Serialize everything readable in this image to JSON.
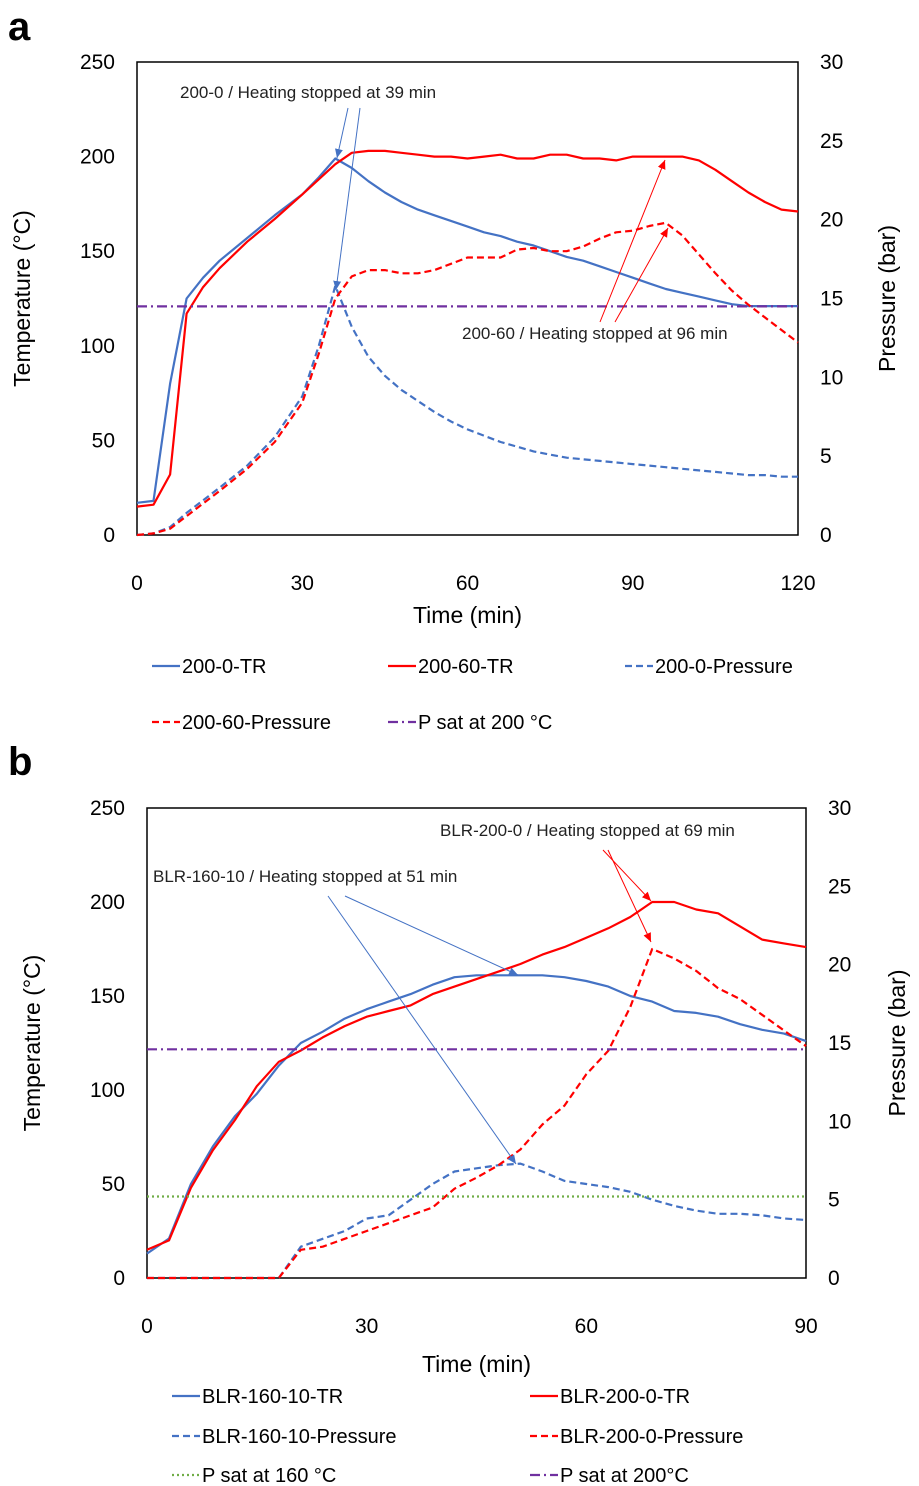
{
  "chart_data": [
    {
      "panel": "a",
      "type": "line",
      "xlabel": "Time (min)",
      "ylabel": "Temperature (°C)",
      "y2label": "Pressure (bar)",
      "xlim": [
        0,
        120
      ],
      "ylim": [
        0,
        250
      ],
      "y2lim": [
        0,
        30
      ],
      "xticks": [
        0,
        30,
        60,
        90,
        120
      ],
      "yticks": [
        0,
        50,
        100,
        150,
        200,
        250
      ],
      "y2ticks": [
        0,
        5,
        10,
        15,
        20,
        25,
        30
      ],
      "grid": false,
      "legend": "bottom",
      "colors": {
        "blue": "#4472c4",
        "red": "#ff0000",
        "purple": "#7030a0"
      },
      "series": [
        {
          "name": "200-0-TR",
          "axis": "left",
          "color": "#4472c4",
          "dash": "solid",
          "x": [
            0,
            3,
            6,
            9,
            12,
            15,
            20,
            25,
            30,
            33,
            36,
            39,
            42,
            45,
            48,
            51,
            54,
            57,
            60,
            63,
            66,
            69,
            72,
            75,
            78,
            81,
            84,
            87,
            90,
            93,
            96,
            99,
            102,
            105,
            108,
            111,
            114,
            117,
            120
          ],
          "y": [
            17,
            18,
            80,
            125,
            136,
            145,
            157,
            169,
            180,
            189,
            199,
            194,
            187,
            181,
            176,
            172,
            169,
            166,
            163,
            160,
            158,
            155,
            153,
            150,
            147,
            145,
            142,
            139,
            136,
            133,
            130,
            128,
            126,
            124,
            122,
            121,
            121,
            121,
            121
          ]
        },
        {
          "name": "200-60-TR",
          "axis": "left",
          "color": "#ff0000",
          "dash": "solid",
          "x": [
            0,
            3,
            6,
            9,
            12,
            15,
            20,
            25,
            30,
            33,
            36,
            39,
            42,
            45,
            48,
            51,
            54,
            57,
            60,
            63,
            66,
            69,
            72,
            75,
            78,
            81,
            84,
            87,
            90,
            93,
            96,
            99,
            102,
            105,
            108,
            111,
            114,
            117,
            120
          ],
          "y": [
            15,
            16,
            32,
            117,
            131,
            141,
            155,
            167,
            180,
            188,
            196,
            202,
            203,
            203,
            202,
            201,
            200,
            200,
            199,
            200,
            201,
            199,
            199,
            201,
            201,
            199,
            199,
            198,
            200,
            200,
            200,
            200,
            198,
            193,
            187,
            181,
            176,
            172,
            171
          ]
        },
        {
          "name": "200-0-Pressure",
          "axis": "right",
          "color": "#4472c4",
          "dash": "dashed",
          "x": [
            0,
            3,
            6,
            9,
            12,
            15,
            20,
            25,
            30,
            33,
            36,
            39,
            42,
            45,
            48,
            51,
            54,
            57,
            60,
            63,
            66,
            69,
            72,
            75,
            78,
            81,
            84,
            87,
            90,
            93,
            96,
            99,
            102,
            105,
            108,
            111,
            114,
            117,
            120
          ],
          "y": [
            0,
            0.1,
            0.5,
            1.4,
            2.2,
            3.0,
            4.4,
            6.2,
            8.8,
            12.0,
            15.8,
            13.2,
            11.3,
            10.1,
            9.2,
            8.5,
            7.8,
            7.2,
            6.7,
            6.3,
            5.9,
            5.6,
            5.3,
            5.1,
            4.9,
            4.8,
            4.7,
            4.6,
            4.5,
            4.4,
            4.3,
            4.2,
            4.1,
            4.0,
            3.9,
            3.8,
            3.8,
            3.7,
            3.7
          ]
        },
        {
          "name": "200-60-Pressure",
          "axis": "right",
          "color": "#ff0000",
          "dash": "dashed",
          "x": [
            0,
            3,
            6,
            9,
            12,
            15,
            20,
            25,
            30,
            33,
            36,
            39,
            42,
            45,
            48,
            51,
            54,
            57,
            60,
            63,
            66,
            69,
            72,
            75,
            78,
            81,
            84,
            87,
            90,
            93,
            96,
            99,
            102,
            105,
            108,
            111,
            114,
            117,
            120
          ],
          "y": [
            0,
            0.1,
            0.4,
            1.2,
            2.0,
            2.8,
            4.2,
            5.9,
            8.4,
            11.5,
            15.0,
            16.4,
            16.8,
            16.8,
            16.6,
            16.6,
            16.8,
            17.2,
            17.6,
            17.6,
            17.6,
            18.1,
            18.2,
            18.0,
            18.0,
            18.3,
            18.8,
            19.2,
            19.3,
            19.6,
            19.8,
            19.0,
            17.8,
            16.6,
            15.5,
            14.6,
            13.8,
            13.0,
            12.2
          ]
        },
        {
          "name": "P sat at 200 °C",
          "axis": "right",
          "color": "#7030a0",
          "dash": "dashdot",
          "x": [
            0,
            120
          ],
          "y": [
            14.5,
            14.5
          ]
        }
      ],
      "annotations": [
        {
          "text": "200-0 / Heating stopped at 39 min",
          "color": "#4472c4"
        },
        {
          "text": "200-60 / Heating stopped at 96 min",
          "color": "#ff0000"
        }
      ]
    },
    {
      "panel": "b",
      "type": "line",
      "xlabel": "Time (min)",
      "ylabel": "Temperature (°C)",
      "y2label": "Pressure (bar)",
      "xlim": [
        0,
        90
      ],
      "ylim": [
        0,
        250
      ],
      "y2lim": [
        0,
        30
      ],
      "xticks": [
        0,
        30,
        60,
        90
      ],
      "yticks": [
        0,
        50,
        100,
        150,
        200,
        250
      ],
      "y2ticks": [
        0,
        5,
        10,
        15,
        20,
        25,
        30
      ],
      "grid": false,
      "legend": "bottom",
      "colors": {
        "blue": "#4472c4",
        "red": "#ff0000",
        "purple": "#7030a0",
        "green": "#70ad47"
      },
      "series": [
        {
          "name": "BLR-160-10-TR",
          "axis": "left",
          "color": "#4472c4",
          "dash": "solid",
          "x": [
            0,
            3,
            6,
            9,
            12,
            15,
            18,
            21,
            24,
            27,
            30,
            33,
            36,
            39,
            42,
            45,
            48,
            51,
            54,
            57,
            60,
            63,
            66,
            69,
            72,
            75,
            78,
            81,
            84,
            87,
            90
          ],
          "y": [
            13,
            21,
            50,
            70,
            86,
            98,
            113,
            125,
            131,
            138,
            143,
            147,
            151,
            156,
            160,
            161,
            161,
            161,
            161,
            160,
            158,
            155,
            150,
            147,
            142,
            141,
            139,
            135,
            132,
            130,
            126
          ]
        },
        {
          "name": "BLR-200-0-TR",
          "axis": "left",
          "color": "#ff0000",
          "dash": "solid",
          "x": [
            0,
            3,
            6,
            9,
            12,
            15,
            18,
            21,
            24,
            27,
            30,
            33,
            36,
            39,
            42,
            45,
            48,
            51,
            54,
            57,
            60,
            63,
            66,
            69,
            72,
            75,
            78,
            81,
            84,
            87,
            90
          ],
          "y": [
            15,
            20,
            48,
            68,
            84,
            102,
            115,
            121,
            128,
            134,
            139,
            142,
            145,
            151,
            155,
            159,
            163,
            167,
            172,
            176,
            181,
            186,
            192,
            200,
            200,
            196,
            194,
            187,
            180,
            178,
            176
          ]
        },
        {
          "name": "BLR-160-10-Pressure",
          "axis": "right",
          "color": "#4472c4",
          "dash": "dashed",
          "x": [
            0,
            18,
            21,
            24,
            27,
            30,
            33,
            36,
            39,
            42,
            45,
            48,
            51,
            54,
            57,
            60,
            63,
            66,
            69,
            72,
            75,
            78,
            81,
            84,
            87,
            90
          ],
          "y": [
            0,
            0,
            2.0,
            2.5,
            3.0,
            3.8,
            4.0,
            5.0,
            6.0,
            6.8,
            7.0,
            7.2,
            7.3,
            6.8,
            6.2,
            6.0,
            5.8,
            5.5,
            5.0,
            4.6,
            4.3,
            4.1,
            4.1,
            4.0,
            3.8,
            3.7
          ]
        },
        {
          "name": "BLR-200-0-Pressure",
          "axis": "right",
          "color": "#ff0000",
          "dash": "dashed",
          "x": [
            0,
            18,
            21,
            24,
            27,
            30,
            33,
            36,
            39,
            42,
            45,
            48,
            51,
            54,
            57,
            60,
            63,
            66,
            69,
            72,
            75,
            78,
            81,
            84,
            87,
            90
          ],
          "y": [
            0,
            0,
            1.8,
            2.0,
            2.5,
            3.0,
            3.5,
            4.0,
            4.5,
            5.7,
            6.4,
            7.2,
            8.2,
            9.8,
            11.0,
            13.0,
            14.5,
            17.3,
            21.0,
            20.4,
            19.6,
            18.5,
            17.8,
            16.8,
            15.8,
            14.8
          ]
        },
        {
          "name": "P sat at 160 °C",
          "axis": "right",
          "color": "#70ad47",
          "dash": "dotted",
          "x": [
            0,
            90
          ],
          "y": [
            5.2,
            5.2
          ]
        },
        {
          "name": "P sat at 200°C",
          "axis": "right",
          "color": "#7030a0",
          "dash": "dashdot",
          "x": [
            0,
            90
          ],
          "y": [
            14.6,
            14.6
          ]
        }
      ],
      "annotations": [
        {
          "text": "BLR-200-0 / Heating stopped at 69 min",
          "color": "#ff0000"
        },
        {
          "text": "BLR-160-10 / Heating stopped at 51 min",
          "color": "#4472c4"
        }
      ]
    }
  ]
}
